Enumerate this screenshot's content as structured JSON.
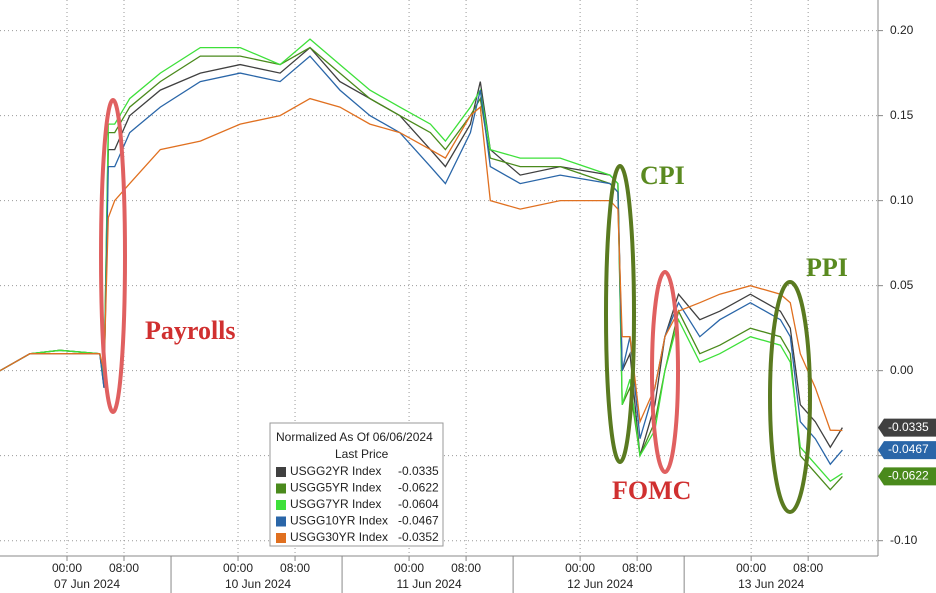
{
  "chart_data": {
    "type": "line",
    "x": [
      -9.4,
      -5.2,
      -1.0,
      4.6,
      5.2,
      5.8,
      6.7,
      8.8,
      13.1,
      18.7,
      24.3,
      29.9,
      34.1,
      38.3,
      42.5,
      46.7,
      51.0,
      53.1,
      56.6,
      58.0,
      59.4,
      63.6,
      69.2,
      76.2,
      77.3,
      77.9,
      79.0,
      80.4,
      82.5,
      83.9,
      85.8,
      88.8,
      91.6,
      95.9,
      100.1,
      101.5,
      102.9,
      105.0,
      107.1,
      108.8
    ],
    "xlim": [
      -9.4,
      113.8
    ],
    "xticks": [
      {
        "value": 0,
        "label": "00:00"
      },
      {
        "value": 8,
        "label": "08:00"
      },
      {
        "value": 24,
        "label": "00:00"
      },
      {
        "value": 32,
        "label": "08:00"
      },
      {
        "value": 48,
        "label": "00:00"
      },
      {
        "value": 56,
        "label": "08:00"
      },
      {
        "value": 72,
        "label": "00:00"
      },
      {
        "value": 80,
        "label": "08:00"
      },
      {
        "value": 96,
        "label": "00:00"
      },
      {
        "value": 104,
        "label": "08:00"
      }
    ],
    "xticks_major": [
      {
        "value": 0,
        "label": "07 Jun 2024"
      },
      {
        "value": 24,
        "label": "10 Jun 2024"
      },
      {
        "value": 48,
        "label": "11 Jun 2024"
      },
      {
        "value": 72,
        "label": "12 Jun 2024"
      },
      {
        "value": 96,
        "label": "13 Jun 2024"
      }
    ],
    "ylim": [
      -0.109,
      0.218
    ],
    "yticks": [
      {
        "value": -0.1,
        "label": "-0.10"
      },
      {
        "value": -0.05,
        "label": "-0.05"
      },
      {
        "value": 0,
        "label": "0.00"
      },
      {
        "value": 0.05,
        "label": "0.05"
      },
      {
        "value": 0.1,
        "label": "0.10"
      },
      {
        "value": 0.15,
        "label": "0.15"
      },
      {
        "value": 0.2,
        "label": "0.20"
      }
    ],
    "grid": true,
    "legend_title": "Normalized As Of 06/06/2024",
    "legend_subtitle": "Last Price",
    "series": [
      {
        "name": "USGG2YR Index",
        "color": "#404040",
        "tag": true,
        "values": [
          0,
          0.01,
          0.012,
          0.01,
          -0.01,
          0.13,
          0.13,
          0.15,
          0.165,
          0.175,
          0.18,
          0.175,
          0.19,
          0.17,
          0.16,
          0.15,
          0.13,
          0.12,
          0.145,
          0.17,
          0.13,
          0.115,
          0.12,
          0.115,
          0.11,
          0.0,
          0.01,
          -0.05,
          -0.02,
          0.02,
          0.045,
          0.03,
          0.035,
          0.045,
          0.035,
          0.025,
          -0.02,
          -0.03,
          -0.045,
          -0.0335
        ]
      },
      {
        "name": "USGG5YR Index",
        "color": "#4a8a1c",
        "tag": true,
        "values": [
          0,
          0.01,
          0.012,
          0.01,
          -0.005,
          0.14,
          0.14,
          0.155,
          0.17,
          0.185,
          0.185,
          0.18,
          0.19,
          0.175,
          0.16,
          0.15,
          0.14,
          0.13,
          0.15,
          0.16,
          0.125,
          0.12,
          0.12,
          0.11,
          0.105,
          -0.02,
          -0.01,
          -0.05,
          -0.03,
          0.0,
          0.035,
          0.01,
          0.015,
          0.025,
          0.02,
          0.01,
          -0.05,
          -0.06,
          -0.07,
          -0.0622
        ]
      },
      {
        "name": "USGG7YR Index",
        "color": "#3ee03a",
        "tag": false,
        "values": [
          0,
          0.01,
          0.012,
          0.01,
          -0.005,
          0.145,
          0.145,
          0.16,
          0.175,
          0.19,
          0.19,
          0.18,
          0.195,
          0.18,
          0.165,
          0.155,
          0.145,
          0.135,
          0.155,
          0.165,
          0.13,
          0.125,
          0.125,
          0.115,
          0.11,
          -0.02,
          -0.005,
          -0.05,
          -0.035,
          0.0,
          0.03,
          0.005,
          0.01,
          0.02,
          0.015,
          0.005,
          -0.045,
          -0.055,
          -0.065,
          -0.0604
        ]
      },
      {
        "name": "USGG10YR Index",
        "color": "#2a66a8",
        "tag": true,
        "values": [
          0,
          0.01,
          0.01,
          0.01,
          -0.01,
          0.12,
          0.12,
          0.14,
          0.155,
          0.17,
          0.175,
          0.17,
          0.185,
          0.165,
          0.15,
          0.14,
          0.12,
          0.11,
          0.14,
          0.165,
          0.12,
          0.11,
          0.115,
          0.11,
          0.105,
          0.0,
          0.02,
          -0.04,
          -0.01,
          0.02,
          0.04,
          0.02,
          0.03,
          0.04,
          0.03,
          0.02,
          -0.03,
          -0.04,
          -0.055,
          -0.0467
        ]
      },
      {
        "name": "USGG30YR Index",
        "color": "#e07020",
        "tag": false,
        "values": [
          0,
          0.01,
          0.01,
          0.01,
          0.0,
          0.09,
          0.1,
          0.11,
          0.13,
          0.135,
          0.145,
          0.15,
          0.16,
          0.155,
          0.145,
          0.14,
          0.13,
          0.125,
          0.15,
          0.155,
          0.1,
          0.095,
          0.1,
          0.1,
          0.095,
          0.02,
          0.02,
          -0.03,
          -0.01,
          0.02,
          0.035,
          0.04,
          0.045,
          0.05,
          0.045,
          0.04,
          0.01,
          -0.01,
          -0.035,
          -0.0352
        ]
      }
    ],
    "annotations": [
      "Payrolls",
      "CPI",
      "FOMC",
      "PPI"
    ]
  }
}
